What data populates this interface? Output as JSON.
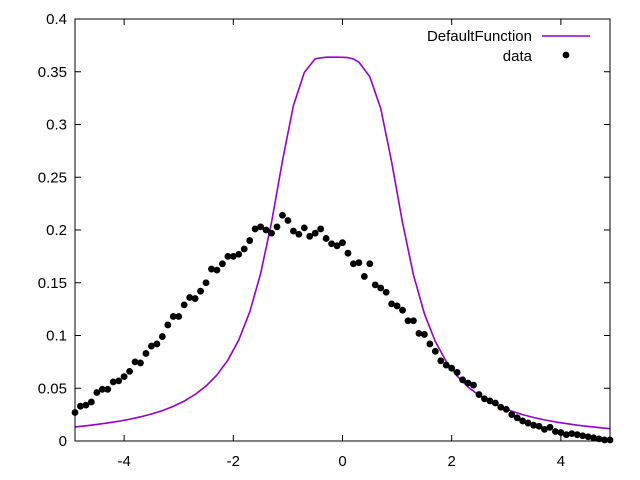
{
  "chart_data": {
    "type": "line",
    "title": "",
    "xlabel": "",
    "ylabel": "",
    "xlim": [
      -4.9,
      4.9
    ],
    "ylim": [
      0,
      0.4
    ],
    "x_ticks": [
      -4,
      -2,
      0,
      2,
      4
    ],
    "x_tick_labels": [
      "-4",
      "-2",
      "0",
      "2",
      "4"
    ],
    "y_ticks": [
      0,
      0.05,
      0.1,
      0.15,
      0.2,
      0.25,
      0.3,
      0.35,
      0.4
    ],
    "y_tick_labels": [
      "0",
      "0.05",
      "0.1",
      "0.15",
      "0.2",
      "0.25",
      "0.3",
      "0.35",
      "0.4"
    ],
    "grid": false,
    "legend_position": "top-right",
    "series": [
      {
        "name": "DefaultFunction",
        "kind": "line",
        "color": "#9400d3",
        "x": [
          -4.9,
          -4.7,
          -4.5,
          -4.3,
          -4.1,
          -3.9,
          -3.7,
          -3.5,
          -3.3,
          -3.1,
          -2.9,
          -2.7,
          -2.5,
          -2.3,
          -2.1,
          -1.9,
          -1.7,
          -1.5,
          -1.3,
          -1.1,
          -0.9,
          -0.7,
          -0.5,
          -0.3,
          -0.2,
          -0.1,
          0,
          0.1,
          0.2,
          0.3,
          0.5,
          0.7,
          0.9,
          1.1,
          1.3,
          1.5,
          1.7,
          1.9,
          2.1,
          2.3,
          2.5,
          2.7,
          2.9,
          3.1,
          3.3,
          3.5,
          3.7,
          3.9,
          4.1,
          4.3,
          4.5,
          4.7,
          4.9
        ],
        "y": [
          0.0133,
          0.0144,
          0.0157,
          0.0171,
          0.0187,
          0.0206,
          0.0229,
          0.0256,
          0.0288,
          0.0328,
          0.0378,
          0.0441,
          0.0521,
          0.0626,
          0.0766,
          0.0958,
          0.1222,
          0.1587,
          0.2072,
          0.2655,
          0.3178,
          0.3493,
          0.3623,
          0.3638,
          0.3638,
          0.3638,
          0.3637,
          0.3634,
          0.3621,
          0.3591,
          0.3452,
          0.3153,
          0.2646,
          0.2068,
          0.1574,
          0.1206,
          0.0943,
          0.0754,
          0.0616,
          0.0512,
          0.0433,
          0.0371,
          0.0322,
          0.0283,
          0.025,
          0.0223,
          0.02,
          0.0181,
          0.0165,
          0.015,
          0.0138,
          0.0127,
          0.0117
        ]
      },
      {
        "name": "data",
        "kind": "scatter",
        "color": "#000000",
        "x": [
          -4.9,
          -4.8,
          -4.7,
          -4.6,
          -4.5,
          -4.4,
          -4.3,
          -4.2,
          -4.1,
          -4.0,
          -3.9,
          -3.8,
          -3.7,
          -3.6,
          -3.5,
          -3.4,
          -3.3,
          -3.2,
          -3.1,
          -3.0,
          -2.9,
          -2.8,
          -2.7,
          -2.6,
          -2.5,
          -2.4,
          -2.3,
          -2.2,
          -2.1,
          -2.0,
          -1.9,
          -1.8,
          -1.7,
          -1.6,
          -1.5,
          -1.4,
          -1.3,
          -1.2,
          -1.1,
          -1.0,
          -0.9,
          -0.8,
          -0.7,
          -0.6,
          -0.5,
          -0.4,
          -0.3,
          -0.2,
          -0.1,
          0.0,
          0.1,
          0.2,
          0.3,
          0.4,
          0.5,
          0.6,
          0.7,
          0.8,
          0.9,
          1.0,
          1.1,
          1.2,
          1.3,
          1.4,
          1.5,
          1.6,
          1.7,
          1.8,
          1.9,
          2.0,
          2.1,
          2.2,
          2.3,
          2.4,
          2.5,
          2.6,
          2.7,
          2.8,
          2.9,
          3.0,
          3.1,
          3.2,
          3.3,
          3.4,
          3.5,
          3.6,
          3.7,
          3.8,
          3.9,
          4.0,
          4.1,
          4.2,
          4.3,
          4.4,
          4.5,
          4.6,
          4.7,
          4.8,
          4.9
        ],
        "y": [
          0.027,
          0.033,
          0.034,
          0.037,
          0.046,
          0.049,
          0.049,
          0.056,
          0.057,
          0.061,
          0.066,
          0.075,
          0.074,
          0.083,
          0.09,
          0.092,
          0.099,
          0.11,
          0.118,
          0.118,
          0.129,
          0.136,
          0.135,
          0.142,
          0.15,
          0.163,
          0.162,
          0.168,
          0.175,
          0.175,
          0.177,
          0.182,
          0.19,
          0.201,
          0.203,
          0.2,
          0.197,
          0.203,
          0.214,
          0.209,
          0.199,
          0.196,
          0.202,
          0.194,
          0.197,
          0.201,
          0.192,
          0.187,
          0.185,
          0.188,
          0.178,
          0.168,
          0.169,
          0.156,
          0.168,
          0.148,
          0.145,
          0.141,
          0.13,
          0.128,
          0.124,
          0.114,
          0.114,
          0.102,
          0.101,
          0.092,
          0.085,
          0.076,
          0.072,
          0.069,
          0.065,
          0.058,
          0.055,
          0.053,
          0.044,
          0.04,
          0.038,
          0.036,
          0.032,
          0.03,
          0.025,
          0.022,
          0.019,
          0.017,
          0.015,
          0.014,
          0.011,
          0.013,
          0.009,
          0.008,
          0.006,
          0.007,
          0.006,
          0.005,
          0.004,
          0.003,
          0.002,
          0.001,
          0.001
        ]
      }
    ]
  }
}
